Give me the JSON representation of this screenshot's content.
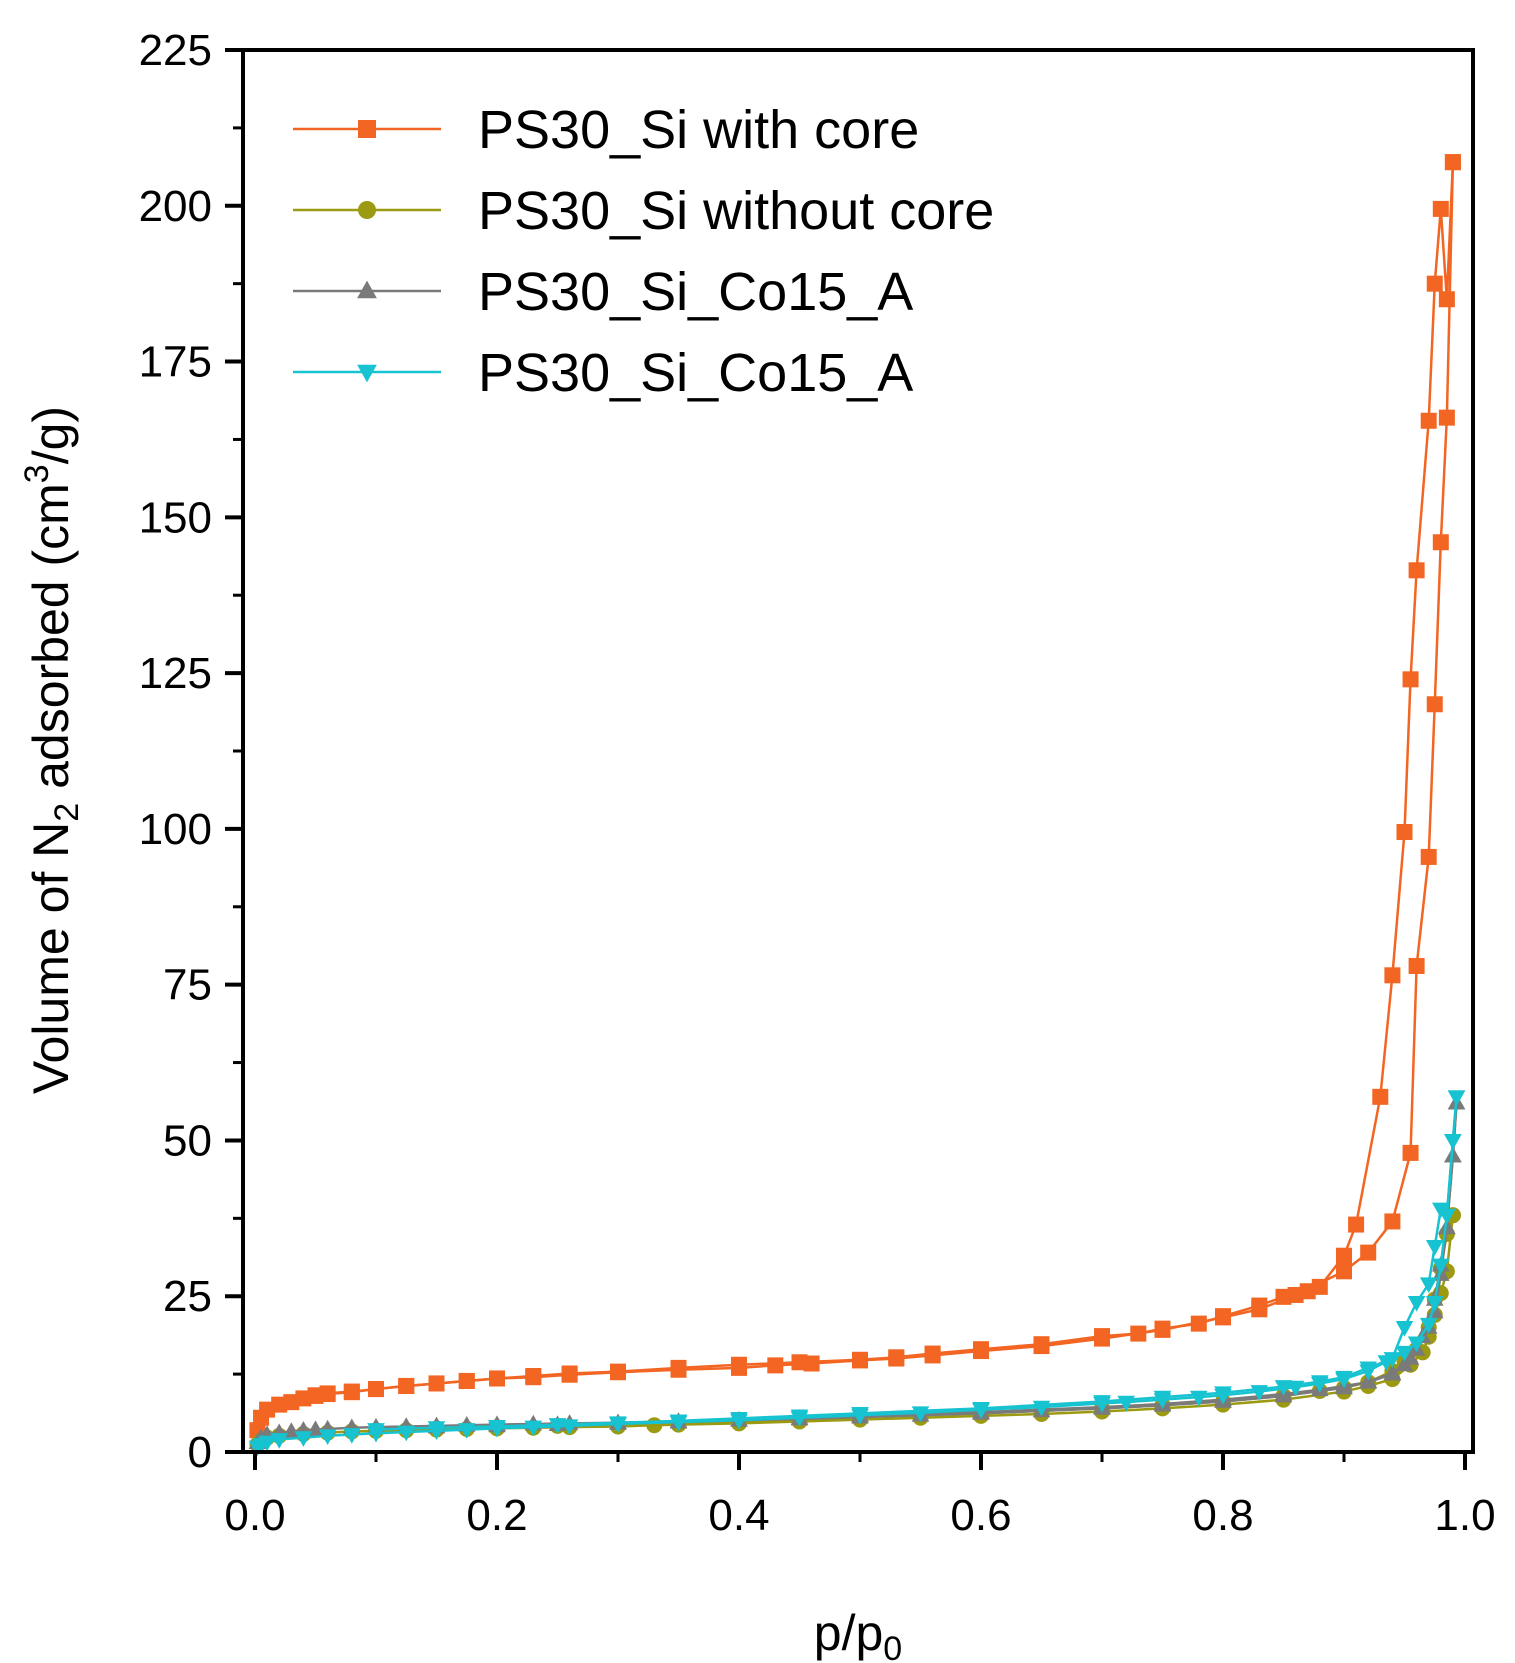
{
  "chart_data": {
    "type": "line",
    "xlabel": "p/p",
    "xlabel_sub": "0",
    "ylabel_main": "Volume of N",
    "ylabel_sub": "2",
    "ylabel_mid": " adsorbed (cm",
    "ylabel_sup": "3",
    "ylabel_end": "/g)",
    "xlim": [
      0.0,
      1.0
    ],
    "ylim": [
      0,
      225
    ],
    "xticks": [
      0.0,
      0.2,
      0.4,
      0.6,
      0.8,
      1.0
    ],
    "xtick_labels": [
      "0.0",
      "0.2",
      "0.4",
      "0.6",
      "0.8",
      "1.0"
    ],
    "yticks": [
      0,
      25,
      50,
      75,
      100,
      125,
      150,
      175,
      200,
      225
    ],
    "ytick_labels": [
      "0",
      "25",
      "50",
      "75",
      "100",
      "125",
      "150",
      "175",
      "200",
      "225"
    ],
    "grid": false,
    "legend_position": "top-left",
    "series": [
      {
        "name": "PS30_Si with core",
        "color": "#f26522",
        "marker": "square",
        "adsorption": {
          "x": [
            0.002,
            0.005,
            0.01,
            0.02,
            0.03,
            0.04,
            0.05,
            0.06,
            0.08,
            0.1,
            0.125,
            0.15,
            0.175,
            0.2,
            0.23,
            0.26,
            0.3,
            0.35,
            0.4,
            0.43,
            0.46,
            0.5,
            0.53,
            0.56,
            0.6,
            0.65,
            0.7,
            0.75,
            0.8,
            0.83,
            0.86,
            0.9,
            0.92,
            0.94,
            0.955,
            0.96,
            0.97,
            0.975,
            0.98,
            0.985,
            0.99
          ],
          "y": [
            3.5,
            5.5,
            6.8,
            7.6,
            8.0,
            8.6,
            9.0,
            9.3,
            9.6,
            10.1,
            10.6,
            11.0,
            11.4,
            11.8,
            12.0,
            12.4,
            12.8,
            13.2,
            13.5,
            13.9,
            14.2,
            14.7,
            15.0,
            15.5,
            16.2,
            17.0,
            18.2,
            19.6,
            21.6,
            22.9,
            25.2,
            29.0,
            32.0,
            37.0,
            48.0,
            78.0,
            95.5,
            120.0,
            146.0,
            166.0,
            207.0
          ]
        },
        "desorption": {
          "x": [
            0.99,
            0.985,
            0.98,
            0.975,
            0.97,
            0.96,
            0.955,
            0.95,
            0.94,
            0.93,
            0.91,
            0.9,
            0.88,
            0.87,
            0.85,
            0.83,
            0.8,
            0.78,
            0.75,
            0.73,
            0.7,
            0.65,
            0.6,
            0.56,
            0.53,
            0.5,
            0.45,
            0.4,
            0.35,
            0.3,
            0.26,
            0.23,
            0.2,
            0.175,
            0.15,
            0.125,
            0.1,
            0.08,
            0.06,
            0.05
          ],
          "y": [
            207.0,
            185.0,
            199.5,
            187.5,
            165.5,
            141.5,
            124.0,
            99.5,
            76.5,
            57.0,
            36.5,
            31.5,
            26.5,
            25.8,
            24.9,
            23.5,
            21.8,
            20.6,
            19.8,
            19.0,
            18.6,
            17.3,
            16.5,
            15.8,
            15.2,
            14.8,
            14.4,
            14.0,
            13.5,
            12.9,
            12.6,
            12.2,
            11.8,
            11.4,
            11.0,
            10.6,
            10.1,
            9.7,
            9.4,
            9.1
          ]
        }
      },
      {
        "name": "PS30_Si without core",
        "color": "#9c9a10",
        "marker": "circle",
        "adsorption": {
          "x": [
            0.002,
            0.005,
            0.01,
            0.02,
            0.04,
            0.06,
            0.08,
            0.1,
            0.125,
            0.15,
            0.175,
            0.2,
            0.23,
            0.26,
            0.3,
            0.33,
            0.35,
            0.4,
            0.45,
            0.5,
            0.55,
            0.6,
            0.65,
            0.7,
            0.75,
            0.8,
            0.85,
            0.9,
            0.92,
            0.94,
            0.955,
            0.965,
            0.97,
            0.975,
            0.98,
            0.985,
            0.99
          ],
          "y": [
            1.2,
            1.8,
            2.3,
            2.6,
            2.9,
            3.1,
            3.3,
            3.4,
            3.5,
            3.6,
            3.7,
            3.8,
            3.9,
            4.0,
            4.1,
            4.3,
            4.4,
            4.6,
            4.9,
            5.2,
            5.5,
            5.8,
            6.1,
            6.5,
            7.0,
            7.6,
            8.4,
            9.7,
            10.6,
            11.7,
            14.0,
            16.0,
            18.5,
            22.0,
            25.5,
            29.0,
            38.0
          ]
        },
        "desorption": {
          "x": [
            0.99,
            0.985,
            0.98,
            0.975,
            0.97,
            0.96,
            0.95,
            0.94,
            0.92,
            0.9,
            0.88,
            0.85,
            0.8,
            0.75,
            0.7,
            0.6,
            0.5,
            0.45,
            0.4,
            0.35,
            0.3,
            0.25,
            0.2,
            0.15,
            0.1
          ],
          "y": [
            38.0,
            35.0,
            29.5,
            24.5,
            20.0,
            16.5,
            14.5,
            13.0,
            11.2,
            10.3,
            9.8,
            9.0,
            8.1,
            7.5,
            7.0,
            6.2,
            5.6,
            5.2,
            4.9,
            4.6,
            4.4,
            4.2,
            4.0,
            3.8,
            3.5
          ]
        }
      },
      {
        "name": "PS30_Si_Co15_A",
        "color": "#7a7a7a",
        "marker": "triangle-up",
        "adsorption": {
          "x": [
            0.002,
            0.005,
            0.01,
            0.02,
            0.03,
            0.04,
            0.05,
            0.06,
            0.08,
            0.1,
            0.125,
            0.15,
            0.175,
            0.2,
            0.23,
            0.26,
            0.3,
            0.35,
            0.4,
            0.45,
            0.5,
            0.55,
            0.6,
            0.65,
            0.7,
            0.75,
            0.8,
            0.85,
            0.9,
            0.92,
            0.94,
            0.955,
            0.965,
            0.975,
            0.98,
            0.985,
            0.99,
            0.993
          ],
          "y": [
            1.5,
            2.3,
            2.8,
            3.1,
            3.3,
            3.5,
            3.6,
            3.7,
            3.9,
            4.0,
            4.1,
            4.2,
            4.3,
            4.4,
            4.5,
            4.6,
            4.7,
            4.9,
            5.1,
            5.3,
            5.6,
            5.9,
            6.2,
            6.6,
            7.0,
            7.5,
            8.1,
            9.0,
            10.3,
            11.3,
            12.6,
            15.0,
            18.5,
            22.5,
            28.5,
            36.0,
            47.5,
            56.0
          ]
        },
        "desorption": {
          "x": [
            0.993,
            0.99,
            0.985,
            0.98,
            0.975,
            0.97,
            0.96,
            0.95,
            0.94,
            0.92,
            0.9,
            0.88,
            0.85,
            0.8,
            0.75,
            0.7,
            0.6,
            0.5,
            0.45,
            0.4,
            0.35,
            0.3,
            0.25,
            0.2,
            0.15
          ],
          "y": [
            56.0,
            47.5,
            36.0,
            30.0,
            24.5,
            20.0,
            16.5,
            14.0,
            12.5,
            11.2,
            10.6,
            10.0,
            9.3,
            8.4,
            7.7,
            7.2,
            6.4,
            5.8,
            5.4,
            5.1,
            4.8,
            4.6,
            4.4,
            4.2,
            4.0
          ]
        }
      },
      {
        "name": "PS30_Si_Co15_A",
        "color": "#17c3d0",
        "marker": "triangle-down",
        "adsorption": {
          "x": [
            0.002,
            0.005,
            0.01,
            0.02,
            0.04,
            0.06,
            0.08,
            0.1,
            0.125,
            0.15,
            0.175,
            0.2,
            0.23,
            0.26,
            0.3,
            0.35,
            0.4,
            0.45,
            0.5,
            0.55,
            0.6,
            0.65,
            0.7,
            0.72,
            0.75,
            0.78,
            0.8,
            0.83,
            0.86,
            0.88,
            0.9,
            0.92,
            0.935,
            0.95,
            0.96,
            0.97,
            0.975,
            0.98,
            0.985,
            0.99,
            0.993
          ],
          "y": [
            0.8,
            1.2,
            1.6,
            2.0,
            2.3,
            2.6,
            2.8,
            3.0,
            3.2,
            3.4,
            3.6,
            3.8,
            4.0,
            4.2,
            4.5,
            4.8,
            5.1,
            5.5,
            5.9,
            6.3,
            6.8,
            7.2,
            7.8,
            8.0,
            8.4,
            8.8,
            9.1,
            9.7,
            10.4,
            11.0,
            11.7,
            13.0,
            14.5,
            16.0,
            17.5,
            20.5,
            24.0,
            30.0,
            38.0,
            50.0,
            57.0
          ]
        },
        "desorption": {
          "x": [
            0.993,
            0.99,
            0.985,
            0.98,
            0.975,
            0.97,
            0.96,
            0.95,
            0.94,
            0.92,
            0.9,
            0.88,
            0.85,
            0.8,
            0.75,
            0.7,
            0.6,
            0.5,
            0.45,
            0.4,
            0.35,
            0.3,
            0.25,
            0.2,
            0.15,
            0.1
          ],
          "y": [
            57.0,
            50.0,
            38.0,
            39.0,
            33.0,
            27.0,
            24.0,
            20.0,
            15.0,
            13.5,
            12.0,
            11.3,
            10.5,
            9.5,
            8.8,
            8.1,
            7.0,
            6.2,
            5.8,
            5.4,
            5.0,
            4.7,
            4.4,
            4.1,
            3.9,
            3.6
          ]
        }
      }
    ]
  }
}
